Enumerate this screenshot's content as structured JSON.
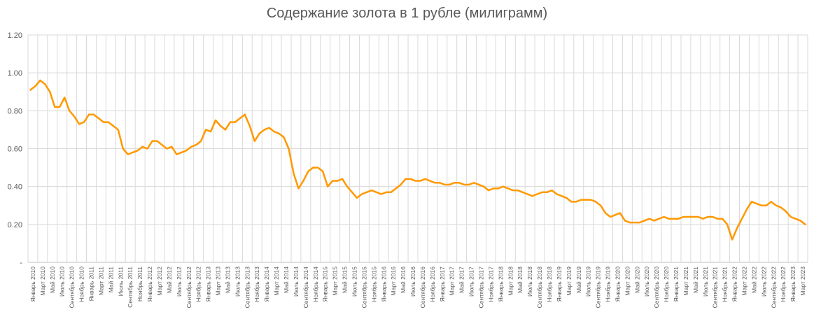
{
  "chart_data": {
    "type": "line",
    "title": "Содержание золота в 1 рубле (милиграмм)",
    "xlabel": "",
    "ylabel": "",
    "ylim": [
      0,
      1.2
    ],
    "y_ticks": [
      "-",
      "0.20",
      "0.40",
      "0.60",
      "0.80",
      "1.00",
      "1.20"
    ],
    "grid": "vertical and horizontal",
    "legend": "none",
    "line_color": "#FF9900",
    "x_tick_labels": [
      "Январь 2010",
      "Март 2010",
      "Май 2010",
      "Июль 2010",
      "Сентябрь 2010",
      "Ноябрь 2010",
      "Январь 2011",
      "Март 2011",
      "Май 2011",
      "Июль 2011",
      "Сентябрь 2011",
      "Ноябрь 2011",
      "Январь 2012",
      "Март 2012",
      "Май 2012",
      "Июль 2012",
      "Сентябрь 2012",
      "Ноябрь 2012",
      "Январь 2013",
      "Март 2013",
      "Май 2013",
      "Июль 2013",
      "Сентябрь 2013",
      "Ноябрь 2013",
      "Январь 2014",
      "Март 2014",
      "Май 2014",
      "Июль 2014",
      "Сентябрь 2014",
      "Ноябрь 2014",
      "Январь 2015",
      "Март 2015",
      "Май 2015",
      "Июль 2015",
      "Сентябрь 2015",
      "Ноябрь 2015",
      "Январь 2016",
      "Март 2016",
      "Май 2016",
      "Июль 2016",
      "Сентябрь 2016",
      "Ноябрь 2016",
      "Январь 2017",
      "Март 2017",
      "Май 2017",
      "Июль 2017",
      "Сентябрь 2017",
      "Ноябрь 2017",
      "Январь 2018",
      "Март 2018",
      "Май 2018",
      "Июль 2018",
      "Сентябрь 2018",
      "Ноябрь 2018",
      "Январь 2019",
      "Март 2019",
      "Май 2019",
      "Июль 2019",
      "Сентябрь 2019",
      "Ноябрь 2019",
      "Январь 2020",
      "Март 2020",
      "Май 2020",
      "Июль 2020",
      "Сентябрь 2020",
      "Ноябрь 2020",
      "Январь 2021",
      "Март 2021",
      "Май 2021",
      "Июль 2021",
      "Сентябрь 2021",
      "Ноябрь 2021",
      "Январь 2022",
      "Март 2022",
      "Май 2022",
      "Июль 2022",
      "Сентябрь 2022",
      "Ноябрь 2022",
      "Январь 2023",
      "Март 2023"
    ],
    "series": [
      {
        "x": [
          "2010-01",
          "2010-02",
          "2010-03",
          "2010-04",
          "2010-05",
          "2010-06",
          "2010-07",
          "2010-08",
          "2010-09",
          "2010-10",
          "2010-11",
          "2010-12",
          "2011-01",
          "2011-02",
          "2011-03",
          "2011-04",
          "2011-05",
          "2011-06",
          "2011-07",
          "2011-08",
          "2011-09",
          "2011-10",
          "2011-11",
          "2011-12",
          "2012-01",
          "2012-02",
          "2012-03",
          "2012-04",
          "2012-05",
          "2012-06",
          "2012-07",
          "2012-08",
          "2012-09",
          "2012-10",
          "2012-11",
          "2012-12",
          "2013-01",
          "2013-02",
          "2013-03",
          "2013-04",
          "2013-05",
          "2013-06",
          "2013-07",
          "2013-08",
          "2013-09",
          "2013-10",
          "2013-11",
          "2013-12",
          "2014-01",
          "2014-02",
          "2014-03",
          "2014-04",
          "2014-05",
          "2014-06",
          "2014-07",
          "2014-08",
          "2014-09",
          "2014-10",
          "2014-11",
          "2014-12",
          "2015-01",
          "2015-02",
          "2015-03",
          "2015-04",
          "2015-05",
          "2015-06",
          "2015-07",
          "2015-08",
          "2015-09",
          "2015-10",
          "2015-11",
          "2015-12",
          "2016-01",
          "2016-02",
          "2016-03",
          "2016-04",
          "2016-05",
          "2016-06",
          "2016-07",
          "2016-08",
          "2016-09",
          "2016-10",
          "2016-11",
          "2016-12",
          "2017-01",
          "2017-02",
          "2017-03",
          "2017-04",
          "2017-05",
          "2017-06",
          "2017-07",
          "2017-08",
          "2017-09",
          "2017-10",
          "2017-11",
          "2017-12",
          "2018-01",
          "2018-02",
          "2018-03",
          "2018-04",
          "2018-05",
          "2018-06",
          "2018-07",
          "2018-08",
          "2018-09",
          "2018-10",
          "2018-11",
          "2018-12",
          "2019-01",
          "2019-02",
          "2019-03",
          "2019-04",
          "2019-05",
          "2019-06",
          "2019-07",
          "2019-08",
          "2019-09",
          "2019-10",
          "2019-11",
          "2019-12",
          "2020-01",
          "2020-02",
          "2020-03",
          "2020-04",
          "2020-05",
          "2020-06",
          "2020-07",
          "2020-08",
          "2020-09",
          "2020-10",
          "2020-11",
          "2020-12",
          "2021-01",
          "2021-02",
          "2021-03",
          "2021-04",
          "2021-05",
          "2021-06",
          "2021-07",
          "2021-08",
          "2021-09",
          "2021-10",
          "2021-11",
          "2021-12",
          "2022-01",
          "2022-02",
          "2022-03",
          "2022-04",
          "2022-05",
          "2022-06",
          "2022-07",
          "2022-08",
          "2022-09",
          "2022-10",
          "2022-11",
          "2022-12",
          "2023-01",
          "2023-02",
          "2023-03",
          "2023-04"
        ],
        "values": [
          0.91,
          0.93,
          0.96,
          0.94,
          0.9,
          0.82,
          0.82,
          0.87,
          0.8,
          0.77,
          0.73,
          0.74,
          0.78,
          0.78,
          0.76,
          0.74,
          0.74,
          0.72,
          0.7,
          0.6,
          0.57,
          0.58,
          0.59,
          0.61,
          0.6,
          0.64,
          0.64,
          0.62,
          0.6,
          0.61,
          0.57,
          0.58,
          0.59,
          0.61,
          0.62,
          0.64,
          0.7,
          0.69,
          0.75,
          0.72,
          0.7,
          0.74,
          0.74,
          0.76,
          0.78,
          0.72,
          0.64,
          0.68,
          0.7,
          0.71,
          0.69,
          0.68,
          0.66,
          0.6,
          0.47,
          0.39,
          0.43,
          0.48,
          0.5,
          0.5,
          0.48,
          0.4,
          0.43,
          0.43,
          0.44,
          0.4,
          0.37,
          0.34,
          0.36,
          0.37,
          0.38,
          0.37,
          0.36,
          0.37,
          0.37,
          0.39,
          0.41,
          0.44,
          0.44,
          0.43,
          0.43,
          0.44,
          0.43,
          0.42,
          0.42,
          0.41,
          0.41,
          0.42,
          0.42,
          0.41,
          0.41,
          0.42,
          0.41,
          0.4,
          0.38,
          0.39,
          0.39,
          0.4,
          0.39,
          0.38,
          0.38,
          0.37,
          0.36,
          0.35,
          0.36,
          0.37,
          0.37,
          0.38,
          0.36,
          0.35,
          0.34,
          0.32,
          0.32,
          0.33,
          0.33,
          0.33,
          0.32,
          0.3,
          0.26,
          0.24,
          0.25,
          0.26,
          0.22,
          0.21,
          0.21,
          0.21,
          0.22,
          0.23,
          0.22,
          0.23,
          0.24,
          0.23,
          0.23,
          0.23,
          0.24,
          0.24,
          0.24,
          0.24,
          0.23,
          0.24,
          0.24,
          0.23,
          0.23,
          0.2,
          0.12,
          0.18,
          0.23,
          0.28,
          0.32,
          0.31,
          0.3,
          0.3,
          0.32,
          0.3,
          0.29,
          0.27,
          0.24,
          0.23,
          0.22,
          0.2
        ]
      }
    ]
  }
}
